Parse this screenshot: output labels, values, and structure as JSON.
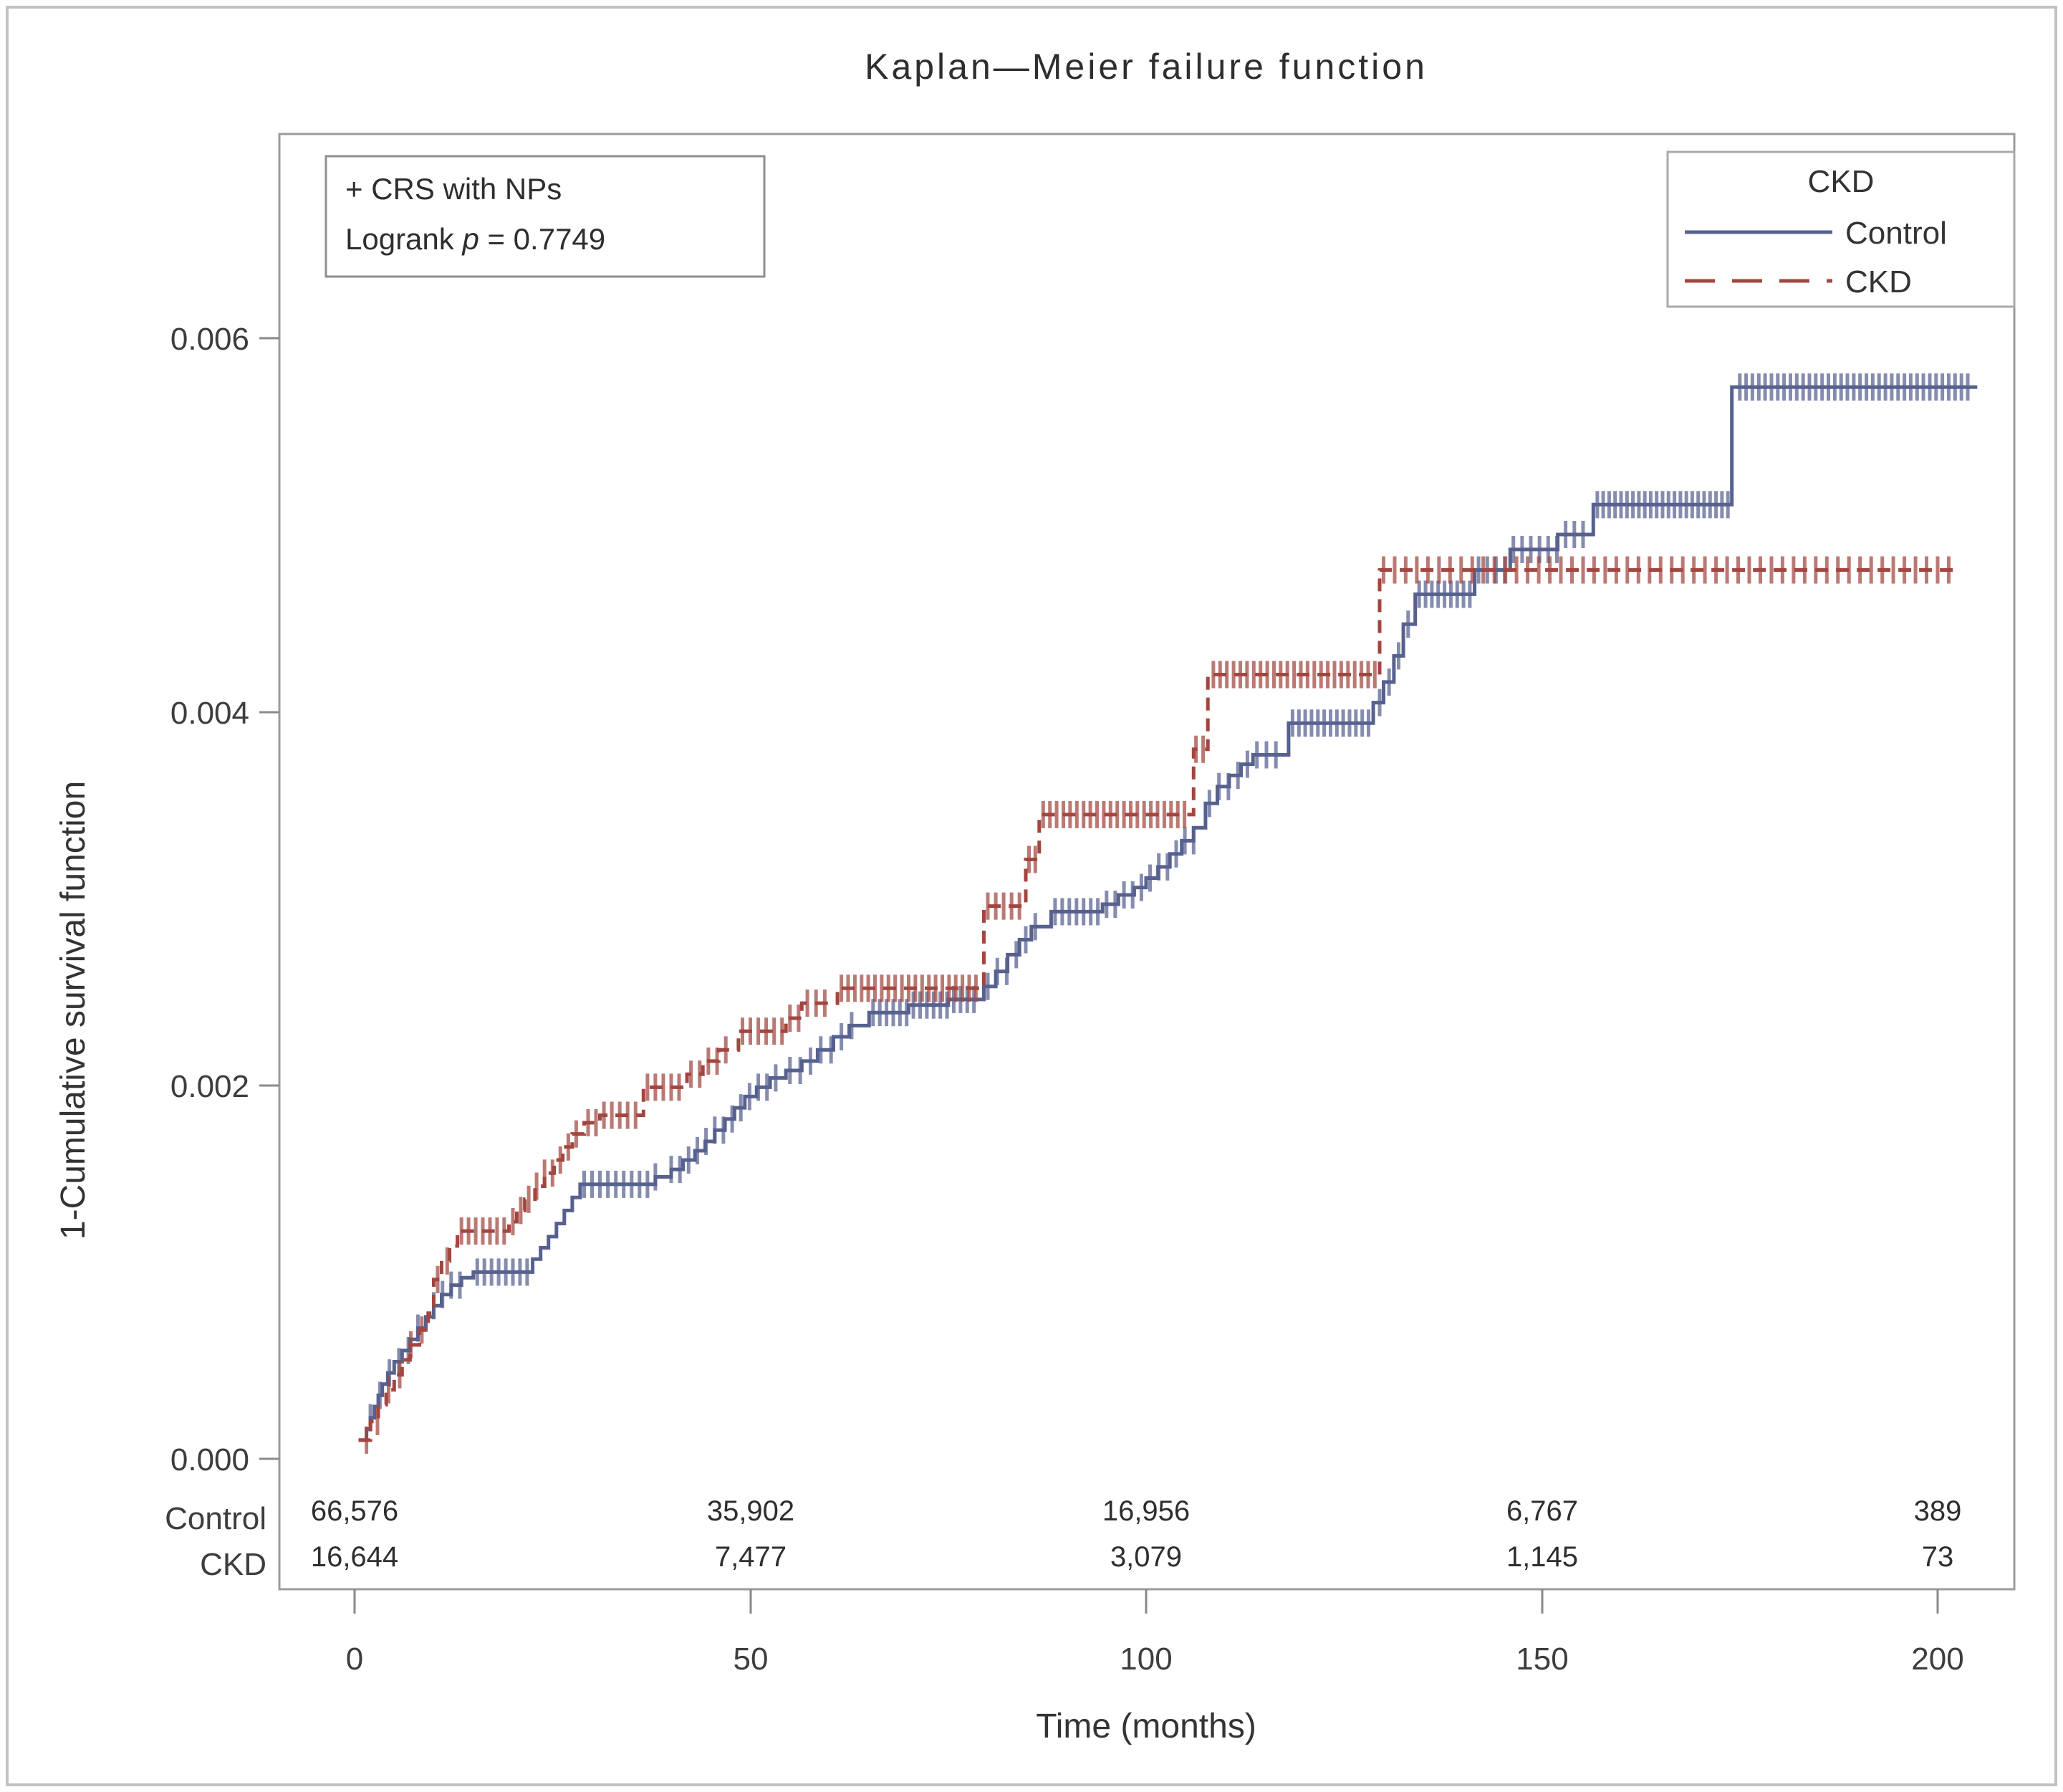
{
  "figure": {
    "title": "Kaplan—Meier failure function",
    "annotation": {
      "line1": "+ CRS with NPs",
      "line2_prefix": "Logrank ",
      "line2_italic": "p",
      "line2_suffix": " = 0.7749"
    },
    "legend": {
      "title": "CKD",
      "entries": [
        {
          "label": "Control",
          "color": "#57618f",
          "style": "solid"
        },
        {
          "label": "CKD",
          "color": "#a2463f",
          "style": "dashed"
        }
      ]
    },
    "axes": {
      "x": {
        "label": "Time (months)",
        "tick_labels": [
          "0",
          "50",
          "100",
          "150",
          "200"
        ]
      },
      "y": {
        "label": "1-Cumulative survival function",
        "tick_labels": [
          "0.006",
          "0.004",
          "0.002",
          "0.000"
        ]
      }
    },
    "at_risk": {
      "rows": [
        {
          "label": "Control",
          "values": [
            "66,576",
            "35,902",
            "16,956",
            "6,767",
            "389"
          ]
        },
        {
          "label": "CKD",
          "values": [
            "16,644",
            "7,477",
            "3,079",
            "1,145",
            "73"
          ]
        }
      ]
    }
  },
  "chart_data": {
    "type": "line",
    "subtype": "kaplan-meier-step",
    "title": "Kaplan—Meier failure function",
    "xlabel": "Time (months)",
    "ylabel": "1-Cumulative survival function",
    "xlim": [
      -9.5,
      209.5
    ],
    "ylim": [
      0,
      0.00709
    ],
    "x_ticks": [
      0,
      50,
      100,
      150,
      200
    ],
    "y_ticks": [
      0,
      0.002,
      0.004,
      0.006
    ],
    "grid": false,
    "legend_position": "top-right-inside",
    "logrank_p": "0.7749",
    "censor_marker": "+",
    "series": [
      {
        "name": "Control",
        "color": "#57618f",
        "line_style": "solid",
        "steps": [
          [
            0.5,
            0.0001
          ],
          [
            1.5,
            0.00016
          ],
          [
            2,
            0.00022
          ],
          [
            2.5,
            0.00028
          ],
          [
            3,
            0.00034
          ],
          [
            3.5,
            0.0004
          ],
          [
            4.2,
            0.00046
          ],
          [
            5,
            0.00052
          ],
          [
            6,
            0.00058
          ],
          [
            7,
            0.00064
          ],
          [
            8,
            0.0007
          ],
          [
            9,
            0.00076
          ],
          [
            10,
            0.00082
          ],
          [
            11,
            0.00088
          ],
          [
            12.2,
            0.00093
          ],
          [
            13.5,
            0.00097
          ],
          [
            15,
            0.001
          ],
          [
            22.5,
            0.00107
          ],
          [
            23.5,
            0.00113
          ],
          [
            24.5,
            0.00119
          ],
          [
            25.5,
            0.00126
          ],
          [
            26.5,
            0.00133
          ],
          [
            27.5,
            0.0014
          ],
          [
            28.5,
            0.00147
          ],
          [
            38,
            0.00151
          ],
          [
            40,
            0.00155
          ],
          [
            41.5,
            0.0016
          ],
          [
            43,
            0.00165
          ],
          [
            44.3,
            0.0017
          ],
          [
            45.5,
            0.00176
          ],
          [
            46.8,
            0.00182
          ],
          [
            48,
            0.00188
          ],
          [
            49.3,
            0.00194
          ],
          [
            50.8,
            0.00199
          ],
          [
            52.5,
            0.00204
          ],
          [
            54.5,
            0.00208
          ],
          [
            56.5,
            0.00213
          ],
          [
            58.5,
            0.00219
          ],
          [
            60.5,
            0.00226
          ],
          [
            62.5,
            0.00232
          ],
          [
            65,
            0.00239
          ],
          [
            70,
            0.00243
          ],
          [
            75,
            0.00246
          ],
          [
            79.5,
            0.00253
          ],
          [
            81,
            0.00261
          ],
          [
            82.5,
            0.0027
          ],
          [
            84,
            0.00278
          ],
          [
            85.5,
            0.00285
          ],
          [
            88,
            0.00293
          ],
          [
            94.5,
            0.00297
          ],
          [
            96.5,
            0.00302
          ],
          [
            98.5,
            0.00306
          ],
          [
            100,
            0.00311
          ],
          [
            101.5,
            0.00317
          ],
          [
            103,
            0.00324
          ],
          [
            104.5,
            0.00331
          ],
          [
            106,
            0.00338
          ],
          [
            107.5,
            0.00351
          ],
          [
            109,
            0.0036
          ],
          [
            110.5,
            0.00366
          ],
          [
            112,
            0.00372
          ],
          [
            113.5,
            0.00377
          ],
          [
            118,
            0.00394
          ],
          [
            128.7,
            0.00405
          ],
          [
            130,
            0.00416
          ],
          [
            131.3,
            0.0043
          ],
          [
            132.5,
            0.00447
          ],
          [
            134,
            0.00463
          ],
          [
            141.5,
            0.00476
          ],
          [
            146,
            0.00487
          ],
          [
            152,
            0.00495
          ],
          [
            156.5,
            0.00511
          ],
          [
            174,
            0.00574
          ],
          [
            205,
            0.00574
          ]
        ],
        "censor_runs": [
          [
            2,
            9,
            1.2
          ],
          [
            10,
            14,
            1.1
          ],
          [
            15.5,
            22,
            0.9
          ],
          [
            29,
            38,
            1
          ],
          [
            40,
            54,
            1.1
          ],
          [
            55,
            64,
            1.3
          ],
          [
            65.5,
            78.5,
            0.85
          ],
          [
            80,
            87,
            1.2
          ],
          [
            88.5,
            94,
            0.9
          ],
          [
            95,
            107,
            1.1
          ],
          [
            108,
            117,
            1.2
          ],
          [
            118.5,
            128.3,
            0.8
          ],
          [
            129.5,
            133.5,
            1.2
          ],
          [
            134.5,
            141,
            0.8
          ],
          [
            142,
            155.5,
            1.1
          ],
          [
            157,
            173.5,
            0.75
          ],
          [
            175,
            204.5,
            0.8
          ]
        ]
      },
      {
        "name": "CKD",
        "color": "#a2463f",
        "line_style": "dashed",
        "steps": [
          [
            0.5,
            0.0001
          ],
          [
            2,
            0.0002
          ],
          [
            3,
            0.00029
          ],
          [
            4,
            0.00037
          ],
          [
            5,
            0.00045
          ],
          [
            6,
            0.00053
          ],
          [
            7,
            0.00061
          ],
          [
            8.2,
            0.00069
          ],
          [
            9.3,
            0.00078
          ],
          [
            10,
            0.00096
          ],
          [
            11,
            0.00106
          ],
          [
            12,
            0.00114
          ],
          [
            13,
            0.00122
          ],
          [
            19.5,
            0.00127
          ],
          [
            20.5,
            0.00133
          ],
          [
            21.5,
            0.00139
          ],
          [
            22.8,
            0.00146
          ],
          [
            24,
            0.00153
          ],
          [
            25.2,
            0.0016
          ],
          [
            26.3,
            0.00167
          ],
          [
            27.5,
            0.00174
          ],
          [
            29,
            0.0018
          ],
          [
            31,
            0.00184
          ],
          [
            36.5,
            0.00199
          ],
          [
            42,
            0.00206
          ],
          [
            44,
            0.00213
          ],
          [
            46,
            0.00219
          ],
          [
            48.5,
            0.00229
          ],
          [
            54.5,
            0.00236
          ],
          [
            56.5,
            0.00244
          ],
          [
            61,
            0.00252
          ],
          [
            79.5,
            0.00296
          ],
          [
            84.8,
            0.00321
          ],
          [
            86.5,
            0.00345
          ],
          [
            106,
            0.0038
          ],
          [
            107.8,
            0.0042
          ],
          [
            129.5,
            0.00476
          ],
          [
            202.5,
            0.00476
          ]
        ],
        "censor_runs": [
          [
            1.5,
            9.5,
            1.4
          ],
          [
            10.5,
            12.5,
            1.2
          ],
          [
            13.5,
            19,
            0.9
          ],
          [
            20,
            28.5,
            1
          ],
          [
            29.5,
            35.5,
            1
          ],
          [
            37,
            41.5,
            1
          ],
          [
            42.5,
            47.5,
            1.1
          ],
          [
            49,
            54,
            1
          ],
          [
            55,
            60,
            1.1
          ],
          [
            61.5,
            79,
            0.85
          ],
          [
            80,
            84.5,
            1
          ],
          [
            85.2,
            86.2,
            0.8
          ],
          [
            87,
            105.5,
            0.85
          ],
          [
            106.3,
            107.3,
            0.9
          ],
          [
            108.5,
            129,
            0.85
          ],
          [
            130,
            202,
            1.4
          ]
        ]
      }
    ],
    "number_at_risk": {
      "times": [
        0,
        50,
        100,
        150,
        200
      ],
      "Control": [
        66576,
        35902,
        16956,
        6767,
        389
      ],
      "CKD": [
        16644,
        7477,
        3079,
        1145,
        73
      ]
    }
  }
}
